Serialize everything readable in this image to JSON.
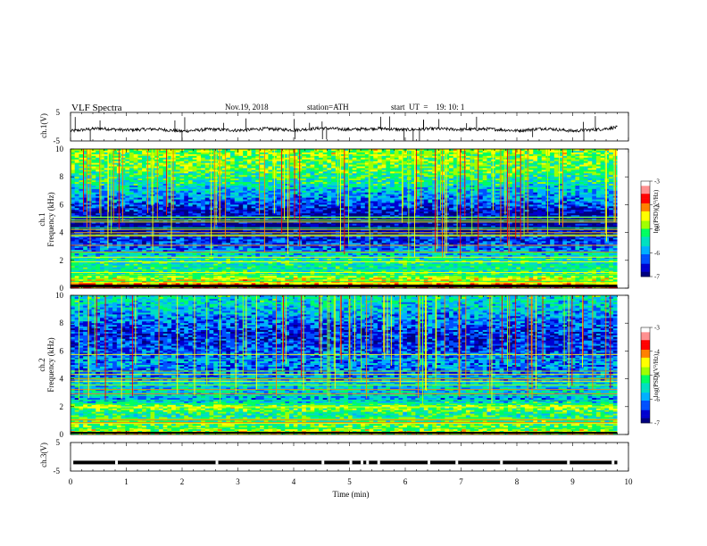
{
  "header": {
    "title": "VLF  Spectra",
    "date": "Nov.19, 2018",
    "station": "station=ATH",
    "start_ut": "start  UT  =    19: 10: 1"
  },
  "colors": {
    "spectrogram": [
      "#000080",
      "#0000d0",
      "#0050ff",
      "#00b0ff",
      "#00e0c0",
      "#00ff60",
      "#a0ff00",
      "#ffff00",
      "#ff8000",
      "#ff0000",
      "#ff9090",
      "#ffffff"
    ]
  },
  "chart_data": [
    {
      "name": "ch1-waveform",
      "type": "line",
      "ylabel": "ch.1(V)",
      "ylim": [
        -5,
        5
      ],
      "y_ticks": [
        "5",
        "-5"
      ],
      "x": [
        0,
        0.5,
        1,
        1.5,
        2,
        2.5,
        3,
        3.5,
        4,
        4.5,
        5,
        5.5,
        6,
        6.5,
        7,
        7.5,
        8,
        8.5,
        9,
        9.5,
        9.8
      ],
      "values": [
        -1.5,
        -0.6,
        -1.2,
        -0.8,
        -1.6,
        -0.9,
        -1.3,
        -0.7,
        -1.2,
        -0.5,
        -1.0,
        -0.6,
        -1.1,
        -0.7,
        -1.0,
        -0.8,
        -1.4,
        -0.6,
        -1.5,
        -0.9,
        -0.2
      ]
    },
    {
      "name": "ch1-spectrogram",
      "type": "heatmap",
      "ylabel_channel": "ch.1",
      "ylabel": "Frequency  (kHz)",
      "ylim": [
        0,
        10
      ],
      "y_ticks": [
        "0",
        "2",
        "4",
        "6",
        "8",
        "10"
      ],
      "x_range_min": [
        0,
        9.8
      ],
      "colorbar_label": "log(PSD)(V²/Hz)",
      "colorbar_range": [
        -7,
        -3
      ],
      "colorbar_ticks": [
        "-3",
        "-4",
        "-5",
        "-6",
        "-7"
      ],
      "levels_by_frequency_kHz": {
        "freq": [
          0,
          0.5,
          1,
          1.5,
          2,
          2.5,
          3,
          3.5,
          4,
          4.5,
          5,
          5.5,
          6,
          6.5,
          7,
          7.5,
          8,
          8.5,
          9,
          9.5,
          10
        ],
        "log_psd": [
          -4.0,
          -4.4,
          -5.2,
          -5.5,
          -5.4,
          -5.8,
          -6.2,
          -6.5,
          -6.8,
          -6.9,
          -6.9,
          -6.7,
          -6.3,
          -6.0,
          -5.8,
          -5.5,
          -5.3,
          -5.1,
          -5.0,
          -4.9,
          -4.8
        ]
      }
    },
    {
      "name": "ch2-spectrogram",
      "type": "heatmap",
      "ylabel_channel": "ch.2",
      "ylabel": "Frequency  (kHz)",
      "ylim": [
        0,
        10
      ],
      "y_ticks": [
        "0",
        "2",
        "4",
        "6",
        "8",
        "10"
      ],
      "x_range_min": [
        0,
        9.8
      ],
      "colorbar_label": "log(PSD)(V²/Hz)",
      "colorbar_range": [
        -7,
        -3
      ],
      "colorbar_ticks": [
        "-3",
        "-4",
        "-5",
        "-6",
        "-7"
      ],
      "levels_by_frequency_kHz": {
        "freq": [
          0,
          0.5,
          1,
          1.5,
          2,
          2.5,
          3,
          3.5,
          4,
          4.5,
          5,
          5.5,
          6,
          6.5,
          7,
          7.5,
          8,
          8.5,
          9,
          9.5,
          10
        ],
        "log_psd": [
          -4.5,
          -5.0,
          -5.2,
          -5.3,
          -4.8,
          -6.0,
          -5.6,
          -5.8,
          -6.0,
          -6.2,
          -6.0,
          -6.1,
          -6.3,
          -6.4,
          -6.5,
          -6.4,
          -6.2,
          -6.0,
          -5.8,
          -5.6,
          -5.5
        ]
      }
    },
    {
      "name": "ch3-trigger",
      "type": "line",
      "ylabel": "ch.3(V)",
      "ylim": [
        -5,
        5
      ],
      "y_ticks": [
        "5",
        "-5"
      ],
      "value": -2
    }
  ],
  "xaxis": {
    "xlabel": "Time  (min)",
    "xlim": [
      0,
      10
    ],
    "tick_labels": [
      "0",
      "1",
      "2",
      "3",
      "4",
      "5",
      "6",
      "7",
      "8",
      "9",
      "10"
    ]
  }
}
